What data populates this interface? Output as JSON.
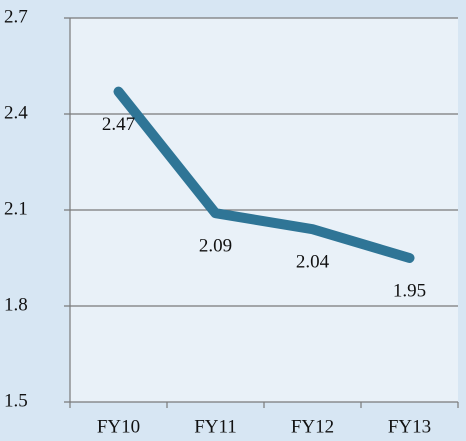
{
  "chart_data": {
    "type": "line",
    "categories": [
      "FY10",
      "FY11",
      "FY12",
      "FY13"
    ],
    "values": [
      2.47,
      2.09,
      2.04,
      1.95
    ],
    "color": "#2f7596",
    "ylim": [
      1.5,
      2.7
    ],
    "yticks": [
      1.5,
      1.8,
      2.1,
      2.4,
      2.7
    ],
    "grid": true
  }
}
